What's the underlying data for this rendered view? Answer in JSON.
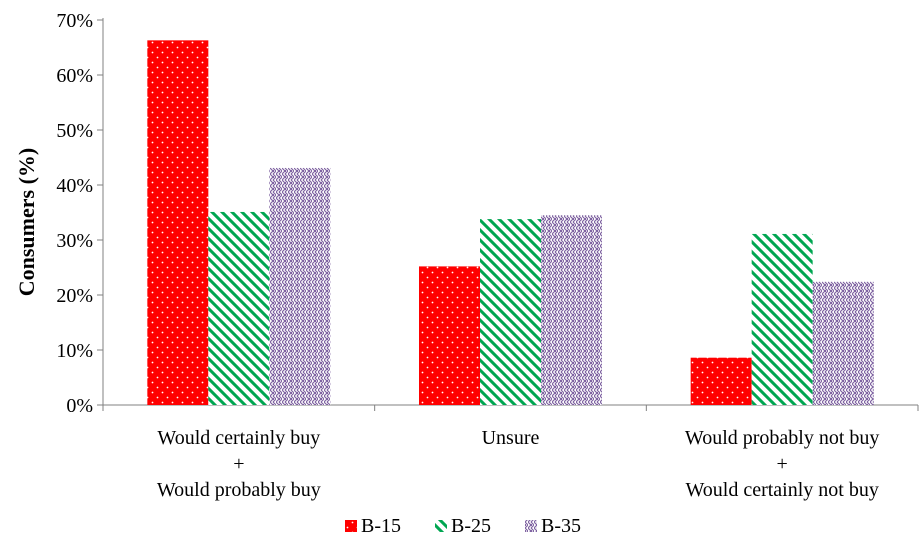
{
  "colors": {
    "B-15": "#ff0000",
    "B-25": "#00a651",
    "B-35": "#8064a2",
    "axis": "#808080"
  },
  "chart_data": {
    "type": "bar",
    "categories": [
      [
        "Would certainly buy",
        "+",
        "Would probably buy"
      ],
      [
        "Unsure"
      ],
      [
        "Would probably not buy",
        "+",
        "Would certainly not buy"
      ]
    ],
    "series": [
      {
        "name": "B-15",
        "pattern": "dots",
        "values": [
          66.3,
          25.2,
          8.6
        ]
      },
      {
        "name": "B-25",
        "pattern": "diagonal-stripes",
        "values": [
          35.1,
          33.8,
          31.1
        ]
      },
      {
        "name": "B-35",
        "pattern": "checker-weave",
        "values": [
          43.1,
          34.5,
          22.4
        ]
      }
    ],
    "ylabel": "Consumers (%)",
    "xlabel": "",
    "ylim": [
      0,
      70
    ],
    "yticks": [
      "0%",
      "10%",
      "20%",
      "30%",
      "40%",
      "50%",
      "60%",
      "70%"
    ],
    "grid": false,
    "legend_position": "bottom-center"
  }
}
